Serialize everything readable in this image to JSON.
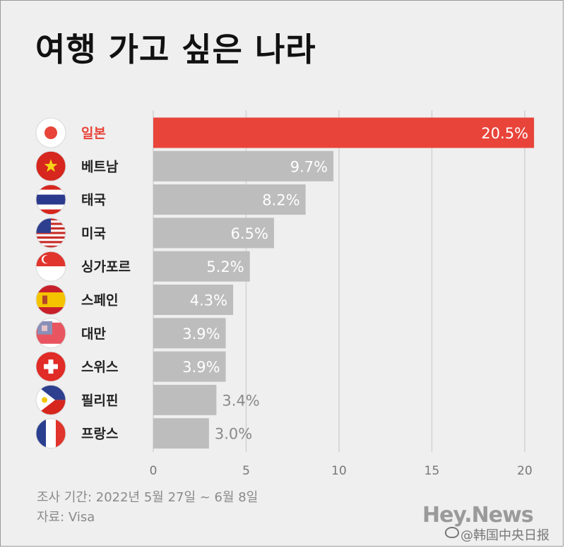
{
  "title": "여행 가고 싶은 나라",
  "chart_data": {
    "type": "bar",
    "orientation": "horizontal",
    "categories": [
      "일본",
      "베트남",
      "태국",
      "미국",
      "싱가포르",
      "스페인",
      "대만",
      "스위스",
      "필리핀",
      "프랑스"
    ],
    "values": [
      20.5,
      9.7,
      8.2,
      6.5,
      5.2,
      4.3,
      3.9,
      3.9,
      3.4,
      3.0
    ],
    "value_labels": [
      "20.5%",
      "9.7%",
      "8.2%",
      "6.5%",
      "5.2%",
      "4.3%",
      "3.9%",
      "3.9%",
      "3.4%",
      "3.0%"
    ],
    "flag_icons": [
      "japan-flag-icon",
      "vietnam-flag-icon",
      "thailand-flag-icon",
      "usa-flag-icon",
      "singapore-flag-icon",
      "spain-flag-icon",
      "taiwan-flag-icon",
      "switzerland-flag-icon",
      "philippines-flag-icon",
      "france-flag-icon"
    ],
    "xlim": [
      0,
      20
    ],
    "xticks": [
      "0",
      "5",
      "10",
      "15",
      "20"
    ],
    "highlight_color": "#e8443a",
    "bar_color": "#bdbdbd",
    "grid": true
  },
  "footer": {
    "survey_period": "조사 기간: 2022년 5월 27일 ~ 6월 8일",
    "source": "자료: Visa",
    "brand": "Hey.News",
    "watermark": "@韩国中央日报"
  }
}
